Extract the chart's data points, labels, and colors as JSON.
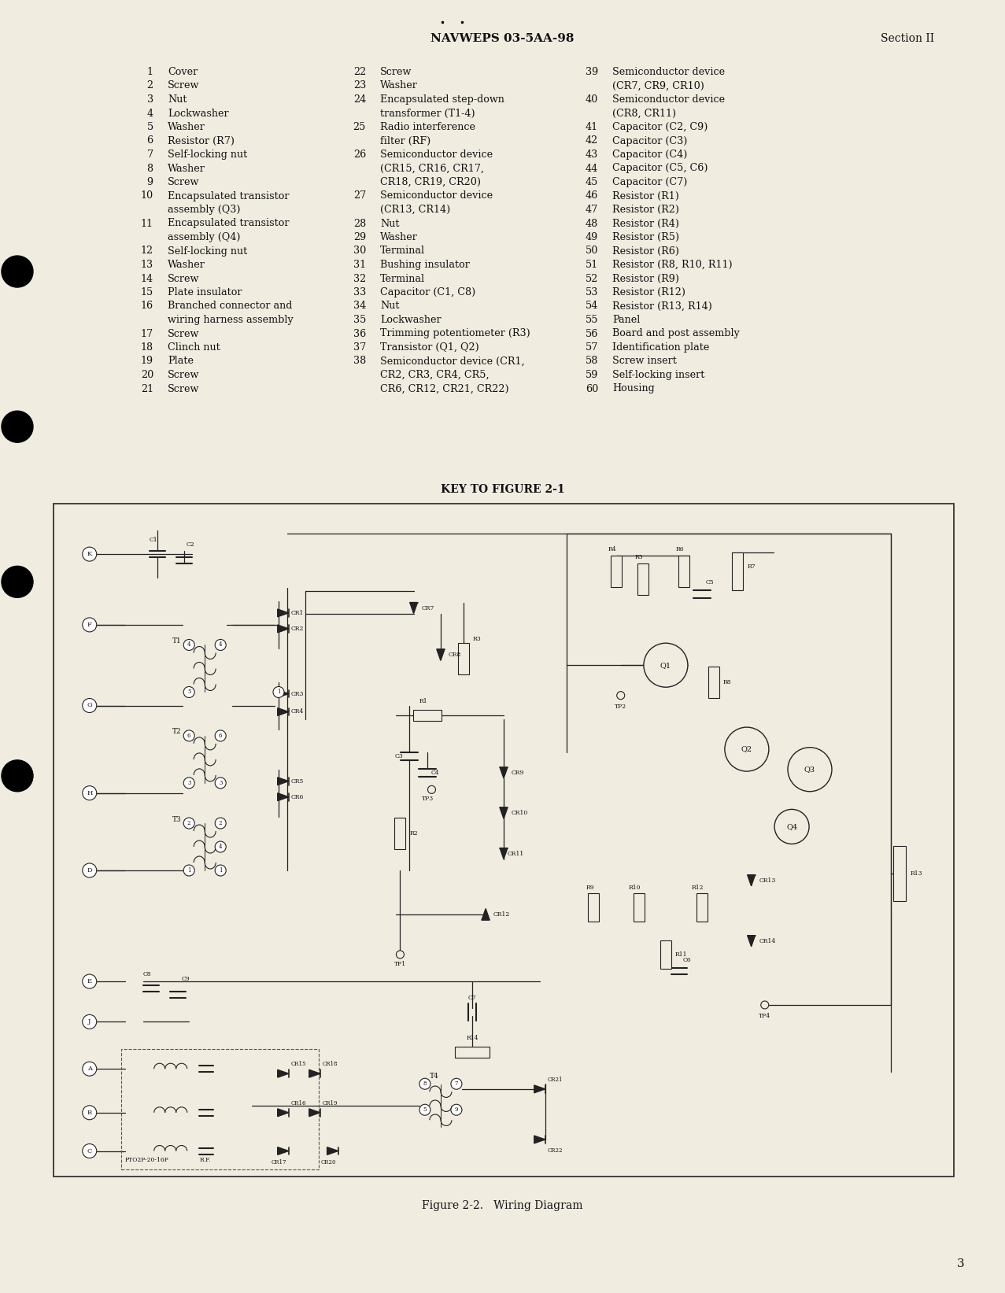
{
  "bg_color": "#f0ece0",
  "header_text": "NAVWEPS 03-5AA-98",
  "header_right": "Section II",
  "page_number": "3",
  "key_title": "KEY TO FIGURE 2-1",
  "figure_caption": "Figure 2-2.   Wiring Diagram",
  "col1_items": [
    [
      " 1",
      "Cover"
    ],
    [
      " 2",
      "Screw"
    ],
    [
      " 3",
      "Nut"
    ],
    [
      " 4",
      "Lockwasher"
    ],
    [
      " 5",
      "Washer"
    ],
    [
      " 6",
      "Resistor (R7)"
    ],
    [
      " 7",
      "Self-locking nut"
    ],
    [
      " 8",
      "Washer"
    ],
    [
      " 9",
      "Screw"
    ],
    [
      "10",
      "Encapsulated transistor",
      "assembly (Q3)"
    ],
    [
      "11",
      "Encapsulated transistor",
      "assembly (Q4)"
    ],
    [
      "12",
      "Self-locking nut"
    ],
    [
      "13",
      "Washer"
    ],
    [
      "14",
      "Screw"
    ],
    [
      "15",
      "Plate insulator"
    ],
    [
      "16",
      "Branched connector and",
      "wiring harness assembly"
    ],
    [
      "17",
      "Screw"
    ],
    [
      "18",
      "Clinch nut"
    ],
    [
      "19",
      "Plate"
    ],
    [
      "20",
      "Screw"
    ],
    [
      "21",
      "Screw"
    ]
  ],
  "col2_items": [
    [
      "22",
      "Screw"
    ],
    [
      "23",
      "Washer"
    ],
    [
      "24",
      "Encapsulated step-down",
      "transformer (T1-4)"
    ],
    [
      "25",
      "Radio interference",
      "filter (RF)"
    ],
    [
      "26",
      "Semiconductor device",
      "(CR15, CR16, CR17,",
      "CR18, CR19, CR20)"
    ],
    [
      "27",
      "Semiconductor device",
      "(CR13, CR14)"
    ],
    [
      "28",
      "Nut"
    ],
    [
      "29",
      "Washer"
    ],
    [
      "30",
      "Terminal"
    ],
    [
      "31",
      "Bushing insulator"
    ],
    [
      "32",
      "Terminal"
    ],
    [
      "33",
      "Capacitor (C1, C8)"
    ],
    [
      "34",
      "Nut"
    ],
    [
      "35",
      "Lockwasher"
    ],
    [
      "36",
      "Trimming potentiometer (R3)"
    ],
    [
      "37",
      "Transistor (Q1, Q2)"
    ],
    [
      "38",
      "Semiconductor device (CR1,",
      "CR2, CR3, CR4, CR5,",
      "CR6, CR12, CR21, CR22)"
    ]
  ],
  "col3_items": [
    [
      "39",
      "Semiconductor device",
      "(CR7, CR9, CR10)"
    ],
    [
      "40",
      "Semiconductor device",
      "(CR8, CR11)"
    ],
    [
      "41",
      "Capacitor (C2, C9)"
    ],
    [
      "42",
      "Capacitor (C3)"
    ],
    [
      "43",
      "Capacitor (C4)"
    ],
    [
      "44",
      "Capacitor (C5, C6)"
    ],
    [
      "45",
      "Capacitor (C7)"
    ],
    [
      "46",
      "Resistor (R1)"
    ],
    [
      "47",
      "Resistor (R2)"
    ],
    [
      "48",
      "Resistor (R4)"
    ],
    [
      "49",
      "Resistor (R5)"
    ],
    [
      "50",
      "Resistor (R6)"
    ],
    [
      "51",
      "Resistor (R8, R10, R11)"
    ],
    [
      "52",
      "Resistor (R9)"
    ],
    [
      "53",
      "Resistor (R12)"
    ],
    [
      "54",
      "Resistor (R13, R14)"
    ],
    [
      "55",
      "Panel"
    ],
    [
      "56",
      "Board and post assembly"
    ],
    [
      "57",
      "Identification plate"
    ],
    [
      "58",
      "Screw insert"
    ],
    [
      "59",
      "Self-locking insert"
    ],
    [
      "60",
      "Housing"
    ]
  ],
  "text_color": "#111111",
  "font_size": 8.5,
  "diagram_line_color": "#222222"
}
